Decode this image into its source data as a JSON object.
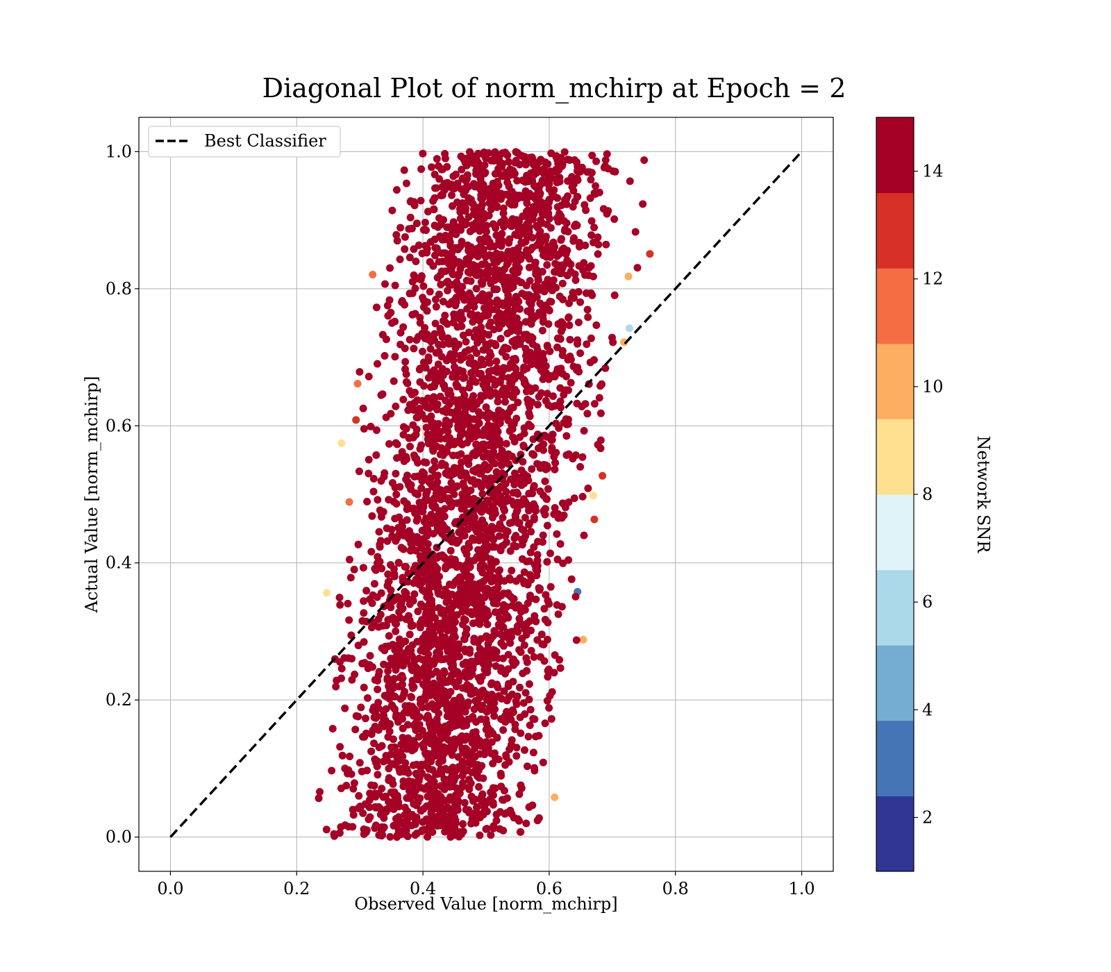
{
  "chart_data": {
    "type": "scatter",
    "title": "Diagonal Plot of norm_mchirp at Epoch = 2",
    "xlabel": "Observed Value [norm_mchirp]",
    "ylabel": "Actual Value [norm_mchirp]",
    "xlim": [
      -0.05,
      1.05
    ],
    "ylim": [
      -0.05,
      1.05
    ],
    "xticks": [
      "0.0",
      "0.2",
      "0.4",
      "0.6",
      "0.8",
      "1.0"
    ],
    "yticks": [
      "0.0",
      "0.2",
      "0.4",
      "0.6",
      "0.8",
      "1.0"
    ],
    "grid": true,
    "legend": {
      "placement": "upper-left",
      "entries": [
        "Best Classifier"
      ]
    },
    "reference_line": {
      "name": "Best Classifier",
      "style": "dashed",
      "color": "#000000",
      "points": [
        [
          0.0,
          0.0
        ],
        [
          1.0,
          1.0
        ]
      ]
    },
    "point_cloud": {
      "color_by": "Network SNR",
      "description_of_distribution": "dense band of points centered slightly right of the diagonal, x from about 0.2 to 0.8, y from 0.0 to 1.0",
      "x_range_low_y": [
        0.19,
        0.62
      ],
      "x_range_high_y": [
        0.3,
        0.8
      ],
      "y_range": [
        0.0,
        1.0
      ]
    },
    "colorbar": {
      "label": "Network SNR",
      "range": [
        1,
        15
      ],
      "ticks": [
        "2",
        "4",
        "6",
        "8",
        "10",
        "12",
        "14"
      ],
      "levels": [
        {
          "from": 1,
          "to": 2.4,
          "color": "#313695"
        },
        {
          "from": 2.4,
          "to": 3.8,
          "color": "#4575b4"
        },
        {
          "from": 3.8,
          "to": 5.2,
          "color": "#74add1"
        },
        {
          "from": 5.2,
          "to": 6.6,
          "color": "#abd9e9"
        },
        {
          "from": 6.6,
          "to": 8.0,
          "color": "#e0f3f8"
        },
        {
          "from": 8.0,
          "to": 9.4,
          "color": "#fee090"
        },
        {
          "from": 9.4,
          "to": 10.8,
          "color": "#fdae61"
        },
        {
          "from": 10.8,
          "to": 12.2,
          "color": "#f46d43"
        },
        {
          "from": 12.2,
          "to": 13.6,
          "color": "#d73027"
        },
        {
          "from": 13.6,
          "to": 15.0,
          "color": "#a50026"
        }
      ]
    }
  }
}
